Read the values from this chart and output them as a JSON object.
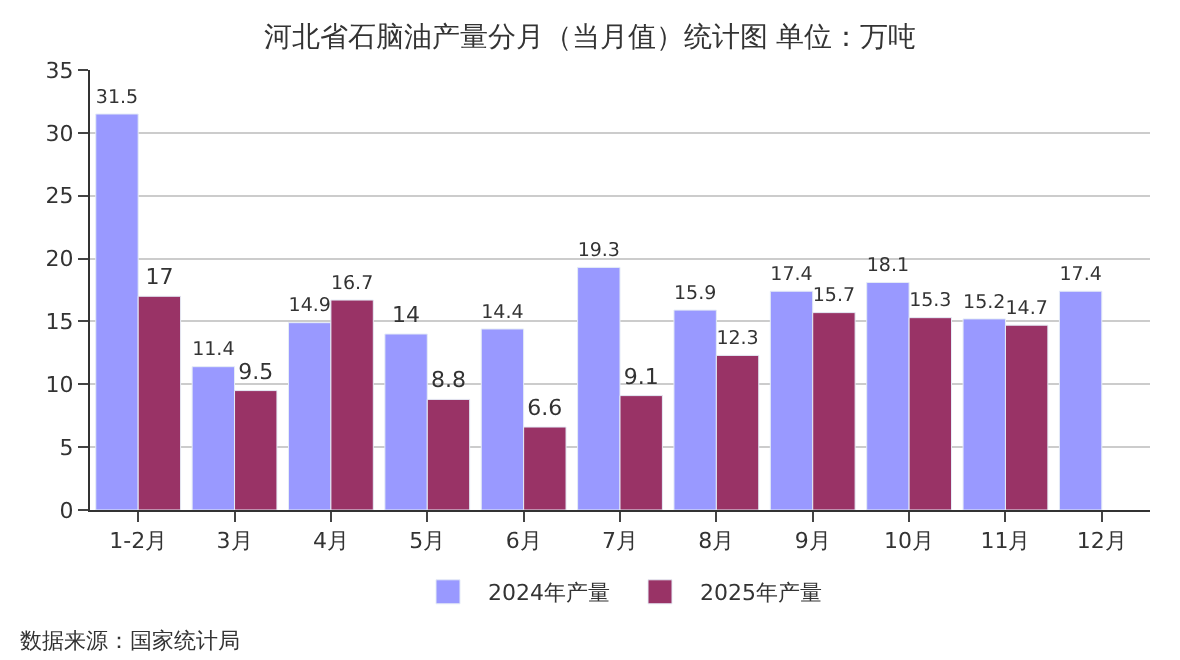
{
  "chart_data": {
    "type": "bar",
    "title": "河北省石脑油产量分月（当月值）统计图 单位：万吨",
    "categories": [
      "1-2月",
      "3月",
      "4月",
      "5月",
      "6月",
      "7月",
      "8月",
      "9月",
      "10月",
      "11月",
      "12月"
    ],
    "series": [
      {
        "name": "2024年产量",
        "color": "#9999ff",
        "values": [
          31.5,
          11.4,
          14.9,
          14,
          14.4,
          19.3,
          15.9,
          17.4,
          18.1,
          15.2,
          17.4
        ]
      },
      {
        "name": "2025年产量",
        "color": "#993366",
        "values": [
          17,
          9.5,
          16.7,
          8.8,
          6.6,
          9.1,
          12.3,
          15.7,
          15.3,
          14.7,
          null
        ]
      }
    ],
    "ylim": [
      0,
      35
    ],
    "yticks": [
      0,
      5,
      10,
      15,
      20,
      25,
      30,
      35
    ],
    "grid": "y",
    "legend": "bottom",
    "data_labels": true,
    "annotations": [
      "数据来源：国家统计局"
    ]
  }
}
